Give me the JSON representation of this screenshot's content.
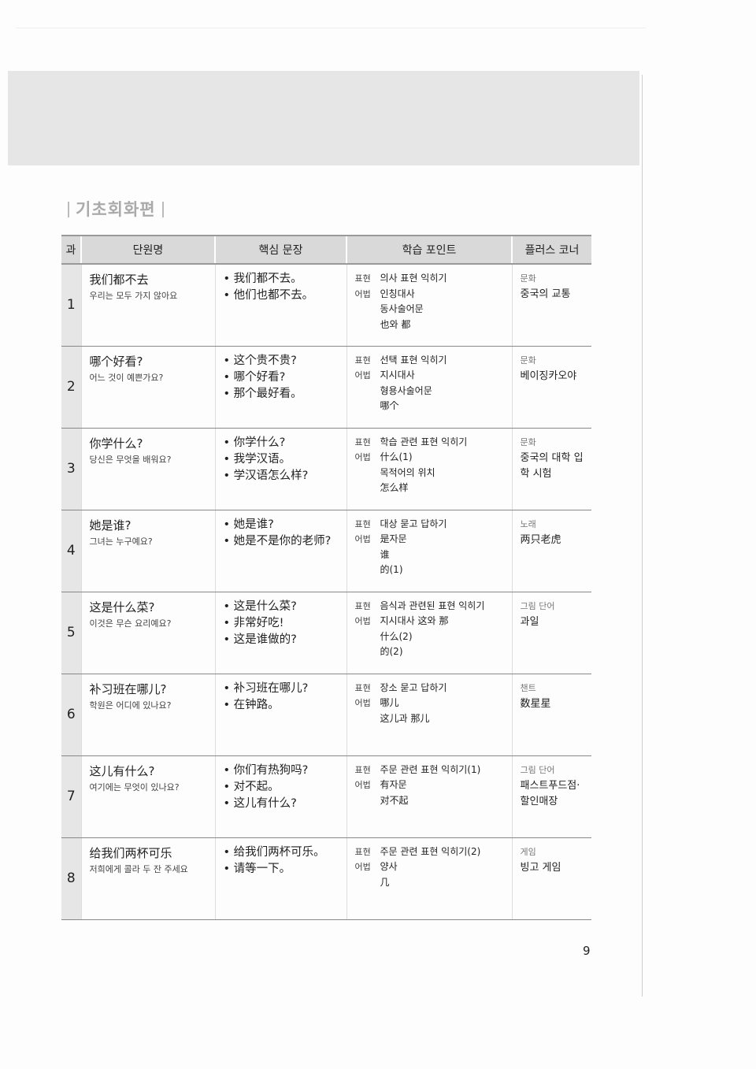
{
  "section_title": "기초회화편",
  "table": {
    "header": [
      "과",
      "단원명",
      "핵심 문장",
      "학습 포인트",
      "플러스 코너"
    ],
    "rows": [
      {
        "lesson": "1",
        "title": "我们都不去",
        "subtitle": "우리는 모두 가지 않아요",
        "sentences": [
          "我们都不去。",
          "他们也都不去。"
        ],
        "points": [
          {
            "label": "표현",
            "items": [
              "의사 표현 익히기"
            ]
          },
          {
            "label": "어법",
            "items": [
              "인칭대사",
              "동사술어문",
              "也와 都"
            ]
          }
        ],
        "corner": {
          "label": "문화",
          "text": "중국의 교통"
        }
      },
      {
        "lesson": "2",
        "title": "哪个好看?",
        "subtitle": "어느 것이 예쁜가요?",
        "sentences": [
          "这个贵不贵?",
          "哪个好看?",
          "那个最好看。"
        ],
        "points": [
          {
            "label": "표현",
            "items": [
              "선택 표현 익히기"
            ]
          },
          {
            "label": "어법",
            "items": [
              "지시대사",
              "형용사술어문",
              "哪个"
            ]
          }
        ],
        "corner": {
          "label": "문화",
          "text": "베이징카오야"
        }
      },
      {
        "lesson": "3",
        "title": "你学什么?",
        "subtitle": "당신은 무엇을 배워요?",
        "sentences": [
          "你学什么?",
          "我学汉语。",
          "学汉语怎么样?"
        ],
        "points": [
          {
            "label": "표현",
            "items": [
              "학습 관련 표현 익히기"
            ]
          },
          {
            "label": "어법",
            "items": [
              "什么(1)",
              "목적어의 위치",
              "怎么样"
            ]
          }
        ],
        "corner": {
          "label": "문화",
          "text": "중국의 대학 입학 시험"
        }
      },
      {
        "lesson": "4",
        "title": "她是谁?",
        "subtitle": "그녀는 누구예요?",
        "sentences": [
          "她是谁?",
          "她是不是你的老师?"
        ],
        "points": [
          {
            "label": "표현",
            "items": [
              "대상 묻고 답하기"
            ]
          },
          {
            "label": "어법",
            "items": [
              "是자문",
              "谁",
              "的(1)"
            ]
          }
        ],
        "corner": {
          "label": "노래",
          "text": "两只老虎"
        }
      },
      {
        "lesson": "5",
        "title": "这是什么菜?",
        "subtitle": "이것은 무슨 요리예요?",
        "sentences": [
          "这是什么菜?",
          "非常好吃!",
          "这是谁做的?"
        ],
        "points": [
          {
            "label": "표현",
            "items": [
              "음식과 관련된 표현 익히기"
            ]
          },
          {
            "label": "어법",
            "items": [
              "지시대사 这와 那",
              "什么(2)",
              "的(2)"
            ]
          }
        ],
        "corner": {
          "label": "그림 단어",
          "text": "과일"
        }
      },
      {
        "lesson": "6",
        "title": "补习班在哪儿?",
        "subtitle": "학원은 어디에 있나요?",
        "sentences": [
          "补习班在哪儿?",
          "在钟路。"
        ],
        "points": [
          {
            "label": "표현",
            "items": [
              "장소 묻고 답하기"
            ]
          },
          {
            "label": "어법",
            "items": [
              "哪儿",
              "这儿과 那儿"
            ]
          }
        ],
        "corner": {
          "label": "챈트",
          "text": "数星星"
        }
      },
      {
        "lesson": "7",
        "title": "这儿有什么?",
        "subtitle": "여기에는 무엇이 있나요?",
        "sentences": [
          "你们有热狗吗?",
          "对不起。",
          "这儿有什么?"
        ],
        "points": [
          {
            "label": "표현",
            "items": [
              "주문 관련 표현 익히기(1)"
            ]
          },
          {
            "label": "어법",
            "items": [
              "有자문",
              "对不起"
            ]
          }
        ],
        "corner": {
          "label": "그림 단어",
          "text": "패스트푸드점·할인매장"
        }
      },
      {
        "lesson": "8",
        "title": "给我们两杯可乐",
        "subtitle": "저희에게 콜라 두 잔 주세요",
        "sentences": [
          "给我们两杯可乐。",
          "请等一下。"
        ],
        "points": [
          {
            "label": "표현",
            "items": [
              "주문 관련 표현 익히기(2)"
            ]
          },
          {
            "label": "어법",
            "items": [
              "양사",
              "几"
            ]
          }
        ],
        "corner": {
          "label": "게임",
          "text": "빙고 게임"
        }
      }
    ]
  },
  "page_number": "9"
}
